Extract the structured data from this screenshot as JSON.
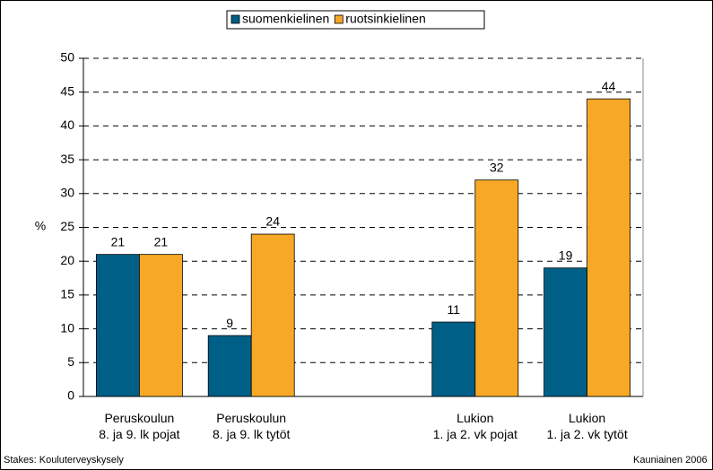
{
  "chart_data": {
    "type": "bar",
    "categories": [
      "Peruskoulun\n8. ja 9. lk pojat",
      "Peruskoulun\n8. ja 9. lk tytöt",
      null,
      "Lukion\n1. ja 2. vk pojat",
      "Lukion\n1. ja 2. vk tytöt"
    ],
    "series": [
      {
        "name": "suomenkielinen",
        "color": "#005f87",
        "values": [
          21,
          9,
          null,
          11,
          19
        ]
      },
      {
        "name": "ruotsinkielinen",
        "color": "#f8a827",
        "values": [
          21,
          24,
          null,
          32,
          44
        ]
      }
    ],
    "ylabel": "%",
    "ylim": [
      0,
      50
    ],
    "yticks": [
      0,
      5,
      10,
      15,
      20,
      25,
      30,
      35,
      40,
      45,
      50
    ],
    "grid": true,
    "legend": "top",
    "source": "Stakes: Kouluterveyskysely",
    "footer": "Kauniainen 2006"
  }
}
